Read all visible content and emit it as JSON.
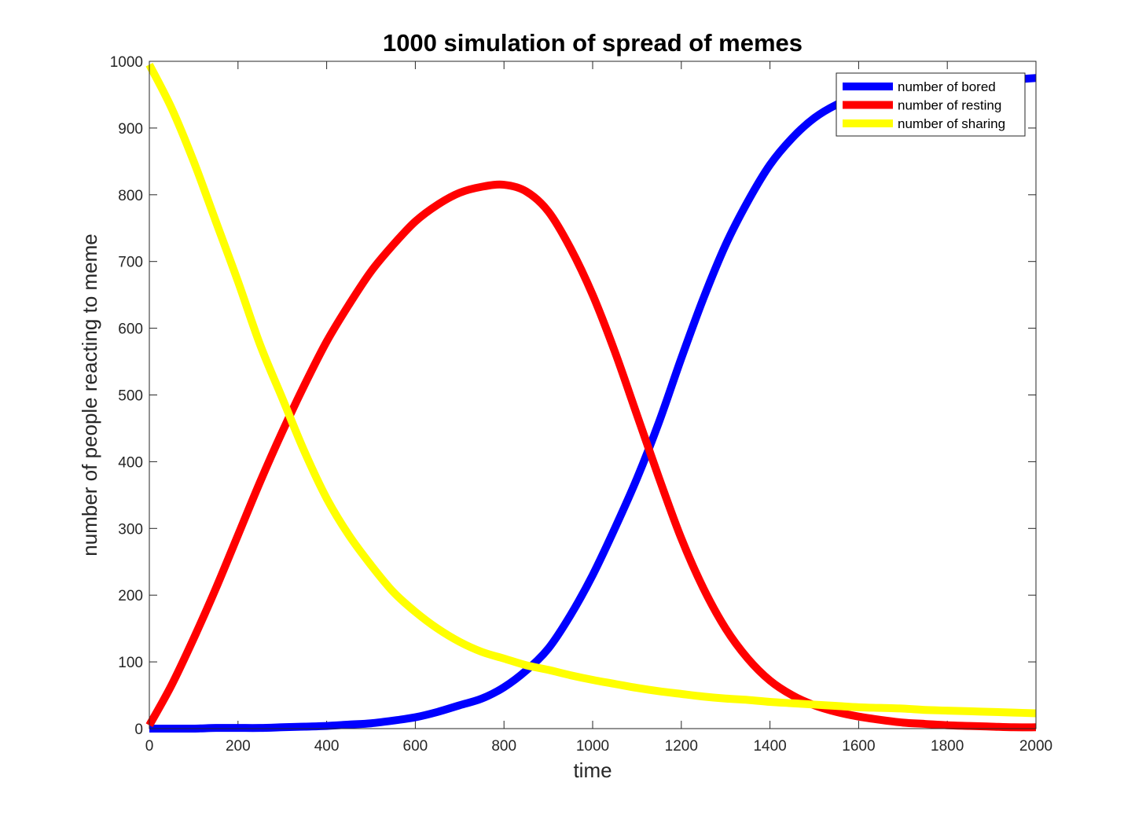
{
  "chart_data": {
    "type": "line",
    "title": "1000 simulation of spread of memes",
    "xlabel": "time",
    "ylabel": "number of people reacting to meme",
    "xlim": [
      0,
      2000
    ],
    "ylim": [
      0,
      1000
    ],
    "xticks": [
      0,
      200,
      400,
      600,
      800,
      1000,
      1200,
      1400,
      1600,
      1800,
      2000
    ],
    "yticks": [
      0,
      100,
      200,
      300,
      400,
      500,
      600,
      700,
      800,
      900,
      1000
    ],
    "legend_position": "top-right",
    "x": [
      0,
      50,
      100,
      150,
      200,
      250,
      300,
      350,
      400,
      450,
      500,
      550,
      600,
      650,
      700,
      750,
      800,
      850,
      900,
      950,
      1000,
      1050,
      1100,
      1150,
      1200,
      1250,
      1300,
      1350,
      1400,
      1450,
      1500,
      1550,
      1600,
      1650,
      1700,
      1750,
      1800,
      1850,
      1900,
      1950,
      2000
    ],
    "series": [
      {
        "name": "number of bored",
        "color": "#0000ff",
        "values": [
          0,
          0,
          0,
          1,
          1,
          1,
          2,
          3,
          4,
          6,
          8,
          12,
          17,
          25,
          35,
          45,
          62,
          87,
          120,
          170,
          230,
          300,
          375,
          460,
          555,
          645,
          725,
          790,
          845,
          885,
          915,
          935,
          948,
          956,
          962,
          966,
          968,
          970,
          972,
          973,
          975
        ]
      },
      {
        "name": "number of resting",
        "color": "#ff0000",
        "values": [
          5,
          65,
          135,
          210,
          290,
          370,
          445,
          515,
          580,
          635,
          685,
          725,
          760,
          785,
          803,
          812,
          815,
          805,
          775,
          720,
          650,
          565,
          470,
          375,
          285,
          210,
          150,
          105,
          72,
          50,
          35,
          25,
          18,
          13,
          9,
          7,
          5,
          4,
          3,
          2,
          2
        ]
      },
      {
        "name": "number of sharing",
        "color": "#ffff00",
        "values": [
          995,
          930,
          850,
          760,
          670,
          575,
          495,
          415,
          345,
          290,
          245,
          205,
          175,
          150,
          130,
          115,
          105,
          95,
          88,
          80,
          73,
          67,
          61,
          56,
          52,
          48,
          45,
          43,
          40,
          38,
          36,
          34,
          32,
          31,
          30,
          28,
          27,
          26,
          25,
          24,
          23
        ]
      }
    ]
  }
}
